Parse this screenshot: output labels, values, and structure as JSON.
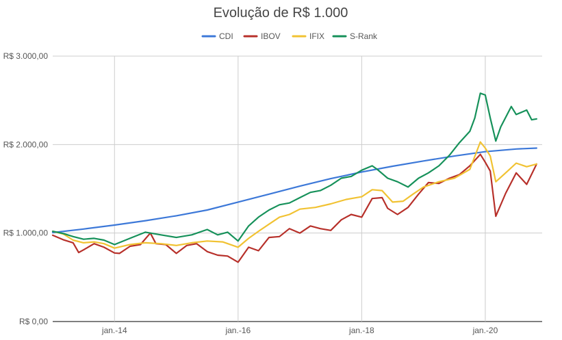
{
  "chart_data": {
    "type": "line",
    "title": "Evolução de R$ 1.000",
    "legend_position": "top",
    "grid": true,
    "y_ticks": [
      "R$ 0,00",
      "R$ 1.000,00",
      "R$ 2.000,00",
      "R$ 3.000,00"
    ],
    "y_tick_values": [
      0,
      1000,
      2000,
      3000
    ],
    "ylim": [
      0,
      3000
    ],
    "x_ticks": [
      "jan.-14",
      "jan.-16",
      "jan.-18",
      "jan.-20"
    ],
    "x_tick_values": [
      2014.0,
      2016.0,
      2018.0,
      2020.0
    ],
    "xlim": [
      2013.0,
      2020.92
    ],
    "series": [
      {
        "name": "CDI",
        "color": "#3c78d8",
        "x": [
          2013.0,
          2013.5,
          2014.0,
          2014.5,
          2015.0,
          2015.5,
          2016.0,
          2016.5,
          2017.0,
          2017.5,
          2018.0,
          2018.5,
          2019.0,
          2019.5,
          2020.0,
          2020.5,
          2020.83
        ],
        "values": [
          1005,
          1045,
          1090,
          1140,
          1195,
          1260,
          1350,
          1440,
          1530,
          1615,
          1690,
          1755,
          1815,
          1870,
          1920,
          1950,
          1960
        ]
      },
      {
        "name": "IBOV",
        "color": "#b7302a",
        "x": [
          2013.0,
          2013.17,
          2013.33,
          2013.42,
          2013.5,
          2013.67,
          2013.83,
          2014.0,
          2014.08,
          2014.25,
          2014.42,
          2014.58,
          2014.67,
          2014.83,
          2015.0,
          2015.17,
          2015.33,
          2015.5,
          2015.67,
          2015.83,
          2016.0,
          2016.17,
          2016.33,
          2016.5,
          2016.67,
          2016.83,
          2017.0,
          2017.17,
          2017.33,
          2017.5,
          2017.67,
          2017.83,
          2018.0,
          2018.17,
          2018.33,
          2018.42,
          2018.58,
          2018.75,
          2018.92,
          2019.08,
          2019.25,
          2019.42,
          2019.58,
          2019.75,
          2019.92,
          2020.0,
          2020.08,
          2020.17,
          2020.33,
          2020.5,
          2020.67,
          2020.83
        ],
        "values": [
          975,
          925,
          890,
          780,
          810,
          880,
          840,
          775,
          770,
          850,
          870,
          1000,
          880,
          870,
          770,
          860,
          880,
          790,
          750,
          740,
          670,
          840,
          800,
          950,
          960,
          1050,
          1000,
          1080,
          1050,
          1030,
          1150,
          1210,
          1180,
          1390,
          1400,
          1280,
          1210,
          1290,
          1440,
          1570,
          1560,
          1620,
          1660,
          1760,
          1890,
          1800,
          1700,
          1190,
          1450,
          1680,
          1550,
          1780
        ]
      },
      {
        "name": "IFIX",
        "color": "#f1c232",
        "x": [
          2013.0,
          2013.17,
          2013.33,
          2013.5,
          2013.67,
          2013.83,
          2014.0,
          2014.25,
          2014.5,
          2014.75,
          2015.0,
          2015.25,
          2015.5,
          2015.75,
          2016.0,
          2016.17,
          2016.33,
          2016.5,
          2016.67,
          2016.83,
          2017.0,
          2017.25,
          2017.5,
          2017.75,
          2018.0,
          2018.17,
          2018.33,
          2018.5,
          2018.67,
          2018.83,
          2019.0,
          2019.25,
          2019.5,
          2019.75,
          2019.92,
          2020.0,
          2020.08,
          2020.17,
          2020.33,
          2020.5,
          2020.67,
          2020.83
        ],
        "values": [
          1020,
          990,
          920,
          890,
          900,
          880,
          830,
          870,
          890,
          880,
          860,
          890,
          910,
          900,
          840,
          940,
          1020,
          1100,
          1180,
          1210,
          1270,
          1290,
          1330,
          1380,
          1410,
          1490,
          1480,
          1350,
          1360,
          1440,
          1520,
          1580,
          1620,
          1720,
          2030,
          1960,
          1870,
          1580,
          1680,
          1790,
          1750,
          1780
        ]
      },
      {
        "name": "S-Rank",
        "color": "#16915a",
        "x": [
          2013.0,
          2013.17,
          2013.33,
          2013.5,
          2013.67,
          2013.83,
          2014.0,
          2014.25,
          2014.5,
          2014.75,
          2015.0,
          2015.25,
          2015.5,
          2015.67,
          2015.83,
          2016.0,
          2016.17,
          2016.33,
          2016.5,
          2016.67,
          2016.83,
          2017.0,
          2017.17,
          2017.33,
          2017.5,
          2017.67,
          2017.83,
          2018.0,
          2018.17,
          2018.25,
          2018.42,
          2018.58,
          2018.75,
          2018.92,
          2019.08,
          2019.25,
          2019.42,
          2019.58,
          2019.75,
          2019.83,
          2019.92,
          2020.0,
          2020.08,
          2020.17,
          2020.25,
          2020.42,
          2020.5,
          2020.67,
          2020.75,
          2020.83
        ],
        "values": [
          1020,
          995,
          960,
          930,
          940,
          920,
          870,
          940,
          1010,
          980,
          950,
          980,
          1040,
          980,
          1010,
          910,
          1080,
          1180,
          1260,
          1320,
          1340,
          1400,
          1460,
          1480,
          1540,
          1620,
          1640,
          1710,
          1760,
          1720,
          1620,
          1580,
          1520,
          1620,
          1680,
          1760,
          1880,
          2020,
          2150,
          2300,
          2580,
          2560,
          2300,
          2040,
          2200,
          2430,
          2340,
          2390,
          2280,
          2290
        ]
      }
    ]
  }
}
